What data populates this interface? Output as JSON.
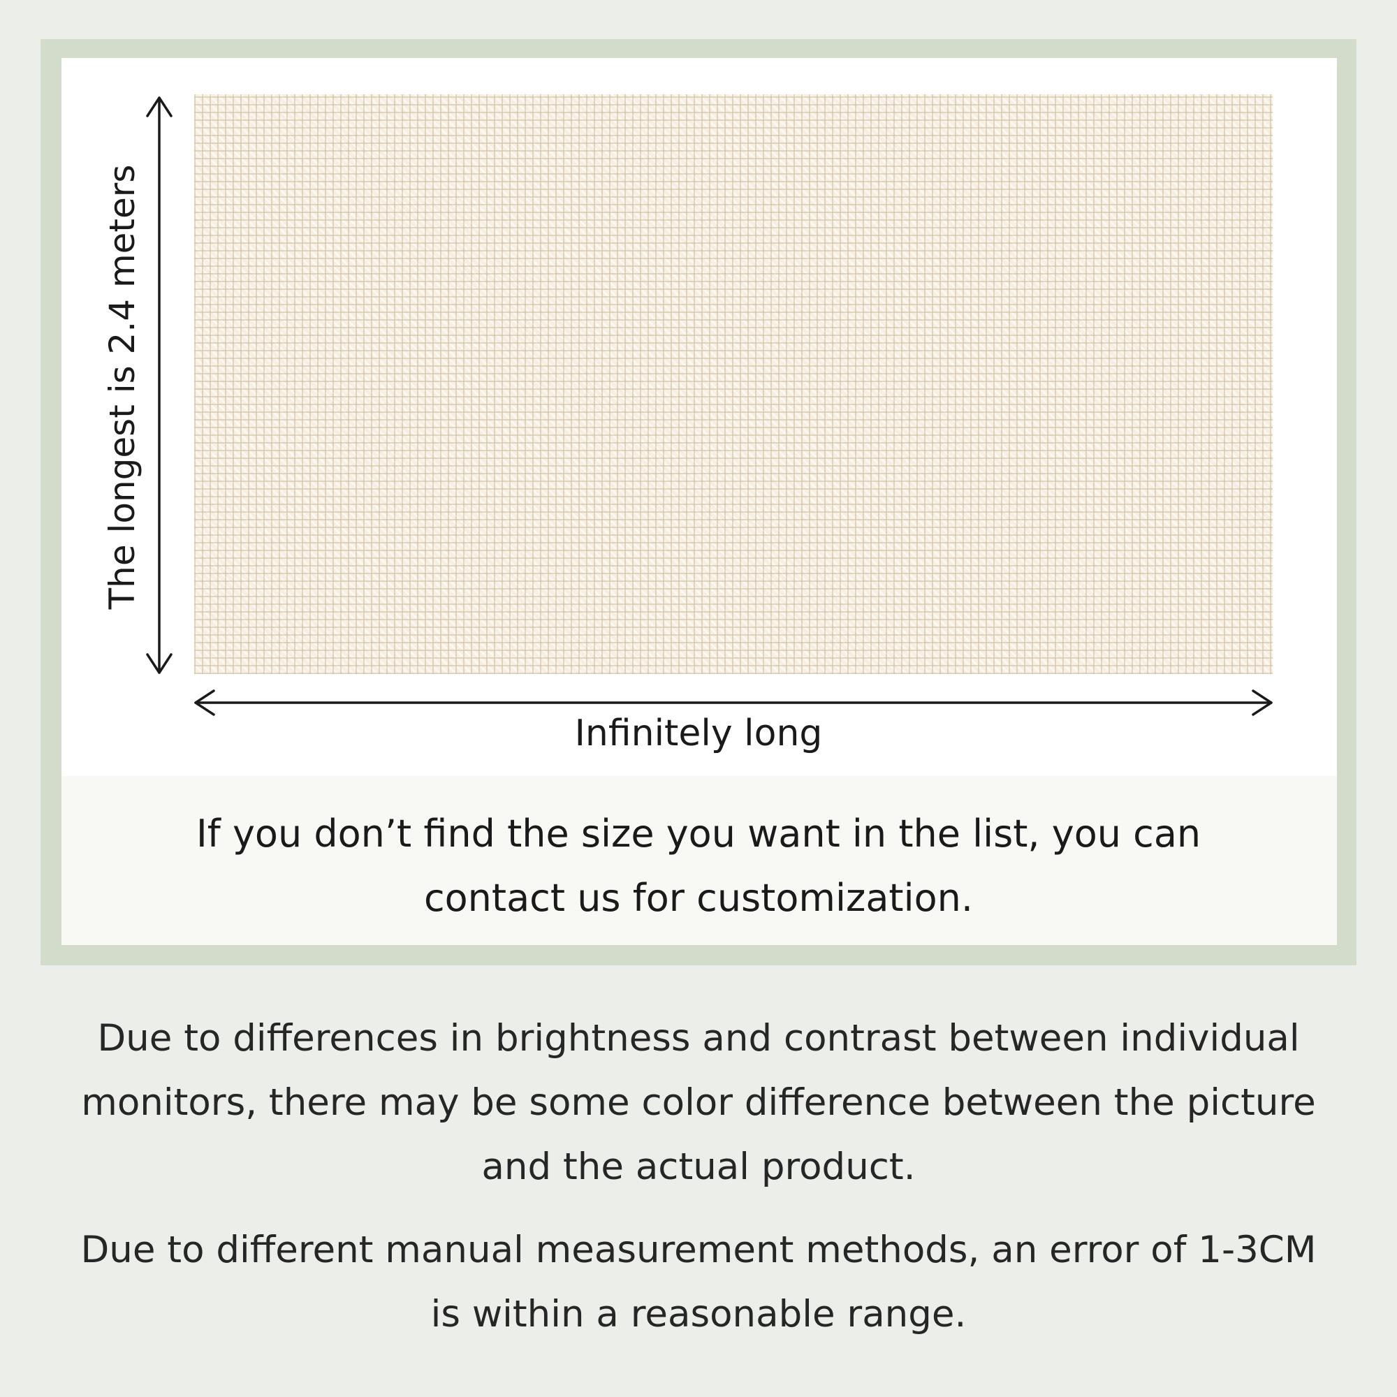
{
  "dimensions": {
    "height_label": "The longest is 2.4 meters",
    "width_label": "Infinitely long"
  },
  "customization_note": "If you don’t find the size you want in the list, you can contact us for customization.",
  "disclaimers": [
    "Due to differences in brightness and contrast between individual monitors, there may be some color difference between the picture and the actual product.",
    "Due to different manual measurement methods, an error of 1-3CM is within a reasonable range."
  ],
  "colors": {
    "frame": "#d3dccb",
    "background": "#eceeea",
    "fabric": "#f6efe2"
  }
}
